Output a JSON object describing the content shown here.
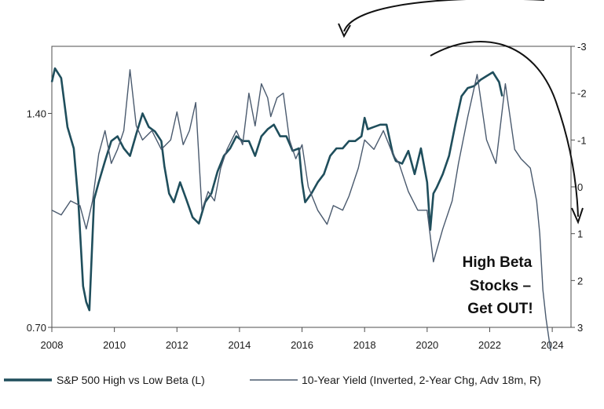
{
  "chart_data": {
    "type": "line",
    "title": "",
    "xlabel": "",
    "ylabel_left": "",
    "ylabel_right": "",
    "x_ticks": [
      "2008",
      "2010",
      "2012",
      "2014",
      "2016",
      "2018",
      "2020",
      "2022",
      "2024"
    ],
    "xlim": [
      2008,
      2024.6
    ],
    "y_left": {
      "ticks": [
        "0.70",
        "1.40"
      ],
      "tick_values": [
        0.7,
        1.4
      ],
      "scale": "log",
      "ylim": [
        0.7,
        1.74
      ]
    },
    "y_right": {
      "ticks": [
        "-3",
        "-2",
        "-1",
        "0",
        "1",
        "2",
        "3"
      ],
      "tick_values": [
        -3,
        -2,
        -1,
        0,
        1,
        2,
        3
      ],
      "inverted": true,
      "ylim": [
        -3,
        3
      ]
    },
    "grid": false,
    "legend_position": "bottom",
    "series": [
      {
        "name": "S&P 500 High vs Low Beta (L)",
        "axis": "left",
        "color": "#1f4e5c",
        "x": [
          2008.0,
          2008.1,
          2008.3,
          2008.5,
          2008.7,
          2008.85,
          2009.0,
          2009.1,
          2009.2,
          2009.35,
          2009.5,
          2009.7,
          2009.9,
          2010.1,
          2010.3,
          2010.5,
          2010.7,
          2010.9,
          2011.1,
          2011.3,
          2011.5,
          2011.6,
          2011.75,
          2011.9,
          2012.1,
          2012.3,
          2012.5,
          2012.7,
          2012.9,
          2013.1,
          2013.3,
          2013.5,
          2013.7,
          2013.9,
          2014.1,
          2014.3,
          2014.5,
          2014.7,
          2014.9,
          2015.1,
          2015.3,
          2015.5,
          2015.7,
          2015.9,
          2016.0,
          2016.1,
          2016.3,
          2016.5,
          2016.7,
          2016.9,
          2017.1,
          2017.3,
          2017.5,
          2017.7,
          2017.9,
          2018.0,
          2018.1,
          2018.3,
          2018.5,
          2018.7,
          2018.9,
          2019.0,
          2019.2,
          2019.4,
          2019.6,
          2019.8,
          2020.0,
          2020.1,
          2020.2,
          2020.3,
          2020.5,
          2020.7,
          2020.9,
          2021.1,
          2021.3,
          2021.5,
          2021.7,
          2021.9,
          2022.1,
          2022.3,
          2022.4
        ],
        "y": [
          1.55,
          1.62,
          1.57,
          1.34,
          1.25,
          1.05,
          0.8,
          0.76,
          0.74,
          1.06,
          1.12,
          1.2,
          1.28,
          1.3,
          1.25,
          1.22,
          1.31,
          1.4,
          1.34,
          1.32,
          1.28,
          1.18,
          1.08,
          1.05,
          1.12,
          1.06,
          1.0,
          0.98,
          1.05,
          1.08,
          1.16,
          1.22,
          1.25,
          1.3,
          1.28,
          1.28,
          1.22,
          1.3,
          1.33,
          1.35,
          1.3,
          1.3,
          1.24,
          1.25,
          1.12,
          1.05,
          1.08,
          1.12,
          1.15,
          1.22,
          1.25,
          1.25,
          1.28,
          1.28,
          1.3,
          1.38,
          1.33,
          1.34,
          1.35,
          1.35,
          1.23,
          1.2,
          1.19,
          1.24,
          1.15,
          1.25,
          1.12,
          0.96,
          1.08,
          1.1,
          1.15,
          1.22,
          1.35,
          1.48,
          1.52,
          1.53,
          1.56,
          1.58,
          1.6,
          1.55,
          1.48
        ]
      },
      {
        "name": "10-Year Yield (Inverted, 2-Year Chg, Adv 18m, R)",
        "axis": "right",
        "color": "#4a5a6e",
        "x": [
          2008.0,
          2008.3,
          2008.6,
          2008.9,
          2009.1,
          2009.3,
          2009.5,
          2009.7,
          2009.9,
          2010.1,
          2010.3,
          2010.5,
          2010.7,
          2010.9,
          2011.2,
          2011.5,
          2011.8,
          2012.0,
          2012.2,
          2012.4,
          2012.6,
          2012.8,
          2013.0,
          2013.2,
          2013.4,
          2013.6,
          2013.9,
          2014.1,
          2014.3,
          2014.5,
          2014.7,
          2014.9,
          2015.0,
          2015.2,
          2015.4,
          2015.6,
          2015.8,
          2016.0,
          2016.2,
          2016.5,
          2016.8,
          2017.0,
          2017.3,
          2017.5,
          2017.8,
          2018.0,
          2018.3,
          2018.6,
          2018.9,
          2019.1,
          2019.4,
          2019.7,
          2020.0,
          2020.2,
          2020.5,
          2020.8,
          2021.0,
          2021.3,
          2021.6,
          2021.9,
          2022.2,
          2022.5,
          2022.8,
          2023.0,
          2023.3,
          2023.5,
          2023.6,
          2023.7,
          2023.8,
          2023.95
        ],
        "y": [
          0.5,
          0.6,
          0.3,
          0.4,
          0.9,
          0.3,
          -0.7,
          -1.2,
          -0.5,
          -0.8,
          -1.2,
          -2.5,
          -1.3,
          -1.0,
          -1.2,
          -0.8,
          -1.0,
          -1.6,
          -0.9,
          -1.2,
          -1.8,
          0.5,
          0.1,
          0.3,
          -0.4,
          -0.8,
          -1.2,
          -0.9,
          -2.0,
          -1.3,
          -2.2,
          -1.9,
          -1.5,
          -1.9,
          -2.0,
          -1.0,
          -0.6,
          -0.9,
          0.0,
          0.5,
          0.8,
          0.4,
          0.5,
          0.2,
          -0.4,
          -1.0,
          -0.8,
          -1.2,
          -0.7,
          -0.5,
          0.1,
          0.5,
          0.5,
          1.6,
          0.9,
          0.3,
          -0.5,
          -1.5,
          -2.4,
          -1.0,
          -0.5,
          -2.2,
          -0.8,
          -0.6,
          -0.4,
          0.3,
          1.0,
          2.2,
          2.8,
          3.5
        ]
      }
    ],
    "annotations": {
      "callout_lines": [
        "High Beta",
        "Stocks –",
        "Get OUT!"
      ]
    }
  }
}
